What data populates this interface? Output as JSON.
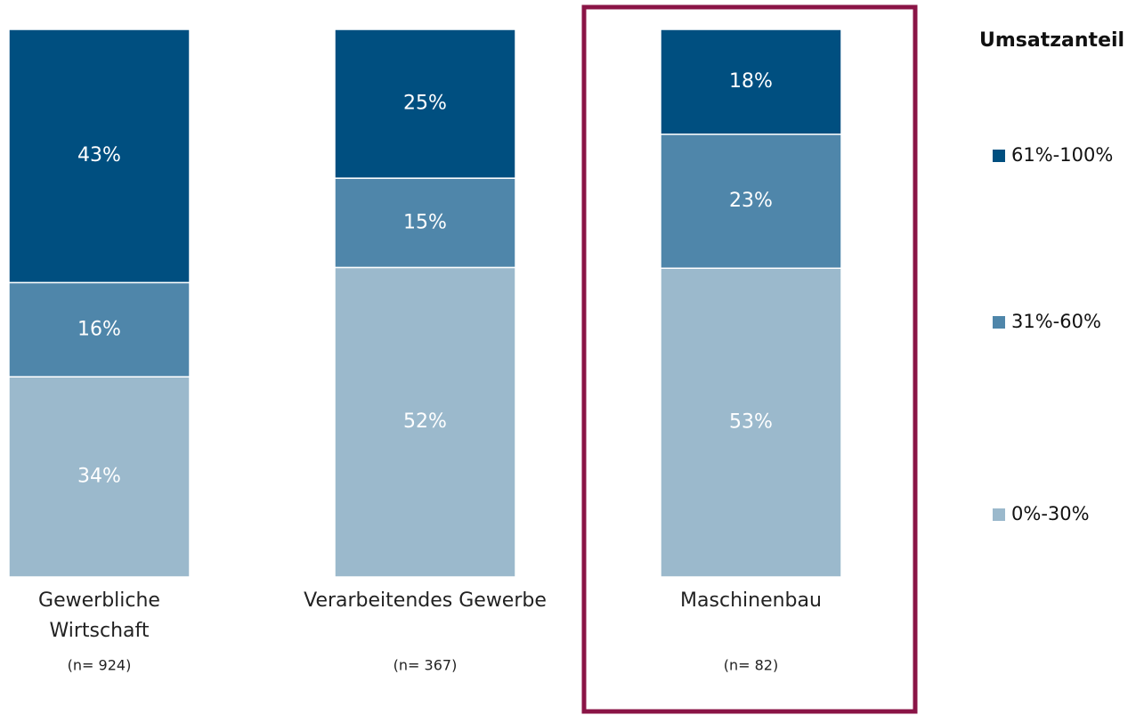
{
  "chart_data": {
    "type": "stacked_bar",
    "categories": [
      "Gewerbliche\nWirtschaft",
      "Verarbeitendes Gewerbe",
      "Maschinenbau"
    ],
    "sample_sizes": [
      "(n= 924)",
      "(n= 367)",
      "(n= 82)"
    ],
    "legend_title": "Umsatzanteil",
    "highlight": 2,
    "highlight_color": "#8a1446",
    "series": [
      {
        "name": "0%-30%",
        "color": "#9bb9cc",
        "values": [
          34,
          52,
          53
        ],
        "value_labels": [
          "34%",
          "52%",
          "53%"
        ]
      },
      {
        "name": "31%-60%",
        "color": "#4f86aa",
        "values": [
          16,
          15,
          23
        ],
        "value_labels": [
          "16%",
          "15%",
          "23%"
        ]
      },
      {
        "name": "61%-100%",
        "color": "#004f80",
        "values": [
          43,
          25,
          18
        ],
        "value_labels": [
          "43%",
          "25%",
          "18%"
        ]
      }
    ]
  }
}
